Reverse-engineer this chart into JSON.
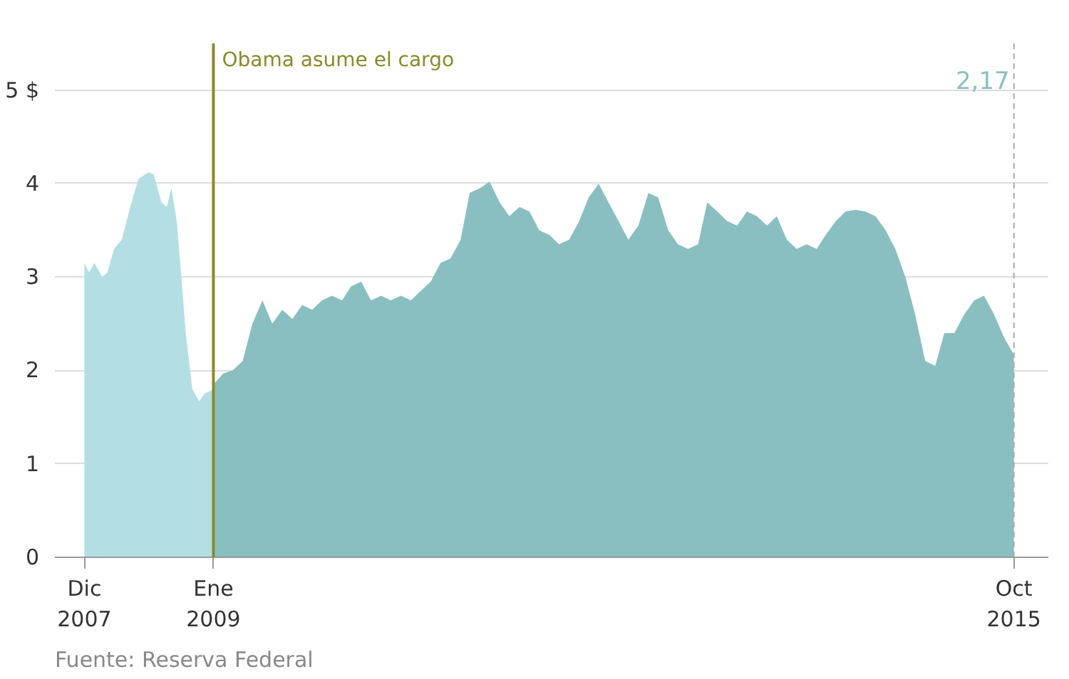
{
  "chart_data": {
    "type": "area",
    "annotations": [
      "Fuente: Reserva Federal"
    ],
    "xlim": [
      "2007-09-01",
      "2016-01-15"
    ],
    "ylim": [
      0,
      5.5
    ],
    "yticks": [
      0,
      1,
      2,
      3,
      4,
      {
        "value": 5,
        "label": "5 $"
      }
    ],
    "xticks": [
      {
        "value": "2007-12-01",
        "label": "Dic\n2007"
      },
      {
        "value": "2009-01-01",
        "label": "Ene\n2009"
      },
      {
        "value": "2015-10-01",
        "label": "Oct\n2015"
      }
    ],
    "grid": "y",
    "ref_lines": [
      {
        "axis": "x",
        "value": "2009-01-01",
        "label": "Obama asume el cargo",
        "color": "#8a8a2a",
        "line_style": "solid"
      },
      {
        "axis": "x",
        "value": "2015-10-01",
        "label": "2,17",
        "color": "#aaaaaa",
        "line_style": "dashed"
      }
    ],
    "series": [
      {
        "color": "#b3dfe4",
        "x": [
          "2007-12-01",
          "2007-12-15",
          "2008-01-01",
          "2008-01-25",
          "2008-02-10",
          "2008-03-01",
          "2008-03-25",
          "2008-04-20",
          "2008-05-15",
          "2008-06-15",
          "2008-07-01",
          "2008-07-25",
          "2008-08-10",
          "2008-08-25",
          "2008-09-10",
          "2008-09-22",
          "2008-10-08",
          "2008-10-28",
          "2008-11-18",
          "2008-12-05",
          "2009-01-01"
        ],
        "values": [
          3.15,
          3.05,
          3.15,
          3.0,
          3.05,
          3.3,
          3.4,
          3.75,
          4.05,
          4.12,
          4.1,
          3.8,
          3.75,
          3.95,
          3.6,
          3.1,
          2.4,
          1.8,
          1.67,
          1.75,
          1.8
        ]
      },
      {
        "color": "#8abfc1",
        "x": [
          "2009-01-01",
          "2009-02-01",
          "2009-03-01",
          "2009-04-01",
          "2009-05-01",
          "2009-06-01",
          "2009-07-01",
          "2009-08-01",
          "2009-09-01",
          "2009-10-01",
          "2009-11-01",
          "2009-12-01",
          "2010-01-01",
          "2010-02-01",
          "2010-03-01",
          "2010-04-01",
          "2010-05-01",
          "2010-06-01",
          "2010-07-01",
          "2010-08-01",
          "2010-09-01",
          "2010-10-01",
          "2010-11-01",
          "2010-12-01",
          "2011-01-01",
          "2011-02-01",
          "2011-03-01",
          "2011-04-01",
          "2011-05-01",
          "2011-06-01",
          "2011-07-01",
          "2011-08-01",
          "2011-09-01",
          "2011-10-01",
          "2011-11-01",
          "2011-12-01",
          "2012-01-01",
          "2012-02-01",
          "2012-03-01",
          "2012-04-01",
          "2012-05-01",
          "2012-06-01",
          "2012-07-01",
          "2012-08-01",
          "2012-09-01",
          "2012-10-01",
          "2012-11-01",
          "2012-12-01",
          "2013-01-01",
          "2013-02-01",
          "2013-03-01",
          "2013-04-01",
          "2013-05-01",
          "2013-06-01",
          "2013-07-01",
          "2013-08-01",
          "2013-09-01",
          "2013-10-01",
          "2013-11-01",
          "2013-12-01",
          "2014-01-01",
          "2014-02-01",
          "2014-03-01",
          "2014-04-01",
          "2014-05-01",
          "2014-06-01",
          "2014-07-01",
          "2014-08-01",
          "2014-09-01",
          "2014-10-01",
          "2014-11-01",
          "2014-12-01",
          "2015-01-01",
          "2015-02-01",
          "2015-03-01",
          "2015-04-01",
          "2015-05-01",
          "2015-06-01",
          "2015-07-01",
          "2015-08-01",
          "2015-09-01",
          "2015-10-01"
        ],
        "values": [
          1.85,
          1.97,
          2.0,
          2.1,
          2.5,
          2.75,
          2.5,
          2.65,
          2.55,
          2.7,
          2.65,
          2.75,
          2.8,
          2.75,
          2.9,
          2.95,
          2.75,
          2.8,
          2.75,
          2.8,
          2.75,
          2.85,
          2.95,
          3.15,
          3.2,
          3.4,
          3.9,
          3.95,
          4.02,
          3.8,
          3.65,
          3.75,
          3.7,
          3.5,
          3.45,
          3.35,
          3.4,
          3.6,
          3.85,
          4.0,
          3.8,
          3.6,
          3.4,
          3.55,
          3.9,
          3.85,
          3.5,
          3.35,
          3.3,
          3.35,
          3.8,
          3.7,
          3.6,
          3.55,
          3.7,
          3.65,
          3.55,
          3.65,
          3.4,
          3.3,
          3.35,
          3.3,
          3.45,
          3.6,
          3.7,
          3.72,
          3.7,
          3.65,
          3.5,
          3.3,
          3.0,
          2.6,
          2.1,
          2.05,
          2.4,
          2.4,
          2.6,
          2.75,
          2.8,
          2.6,
          2.35,
          2.17
        ]
      }
    ]
  }
}
